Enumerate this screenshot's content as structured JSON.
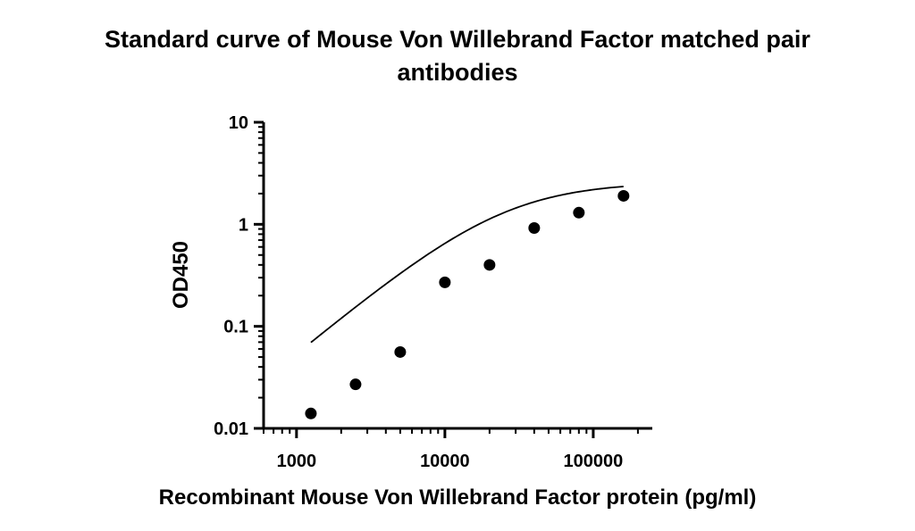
{
  "chart_data": {
    "type": "scatter",
    "title_lines": [
      "Standard curve of Mouse Von Willebrand Factor matched pair",
      "antibodies"
    ],
    "xlabel": "Recombinant Mouse Von Willebrand Factor protein (pg/ml)",
    "ylabel": "OD450",
    "x_scale": "log",
    "y_scale": "log",
    "xlim": [
      600,
      250000
    ],
    "ylim": [
      0.01,
      10
    ],
    "x_ticks": [
      {
        "value": 1000,
        "label": "1000"
      },
      {
        "value": 10000,
        "label": "10000"
      },
      {
        "value": 100000,
        "label": "100000"
      }
    ],
    "y_ticks": [
      {
        "value": 0.01,
        "label": "0.01"
      },
      {
        "value": 0.1,
        "label": "0.1"
      },
      {
        "value": 1,
        "label": "1"
      },
      {
        "value": 10,
        "label": "10"
      }
    ],
    "grid": false,
    "series": [
      {
        "x": [
          1250,
          2500,
          5000,
          10000,
          20000,
          40000,
          80000,
          160000
        ],
        "y": [
          0.014,
          0.027,
          0.056,
          0.27,
          0.4,
          0.92,
          1.3,
          1.9
        ]
      }
    ],
    "fit_curve": {
      "model": "4PL",
      "bottom": 0.0,
      "top": 2.6,
      "ec50": 25000,
      "hill": 1.2,
      "x_range": [
        1250,
        160000
      ]
    },
    "colors": {
      "marker": "#000000",
      "axis": "#000000",
      "curve": "#000000"
    }
  }
}
